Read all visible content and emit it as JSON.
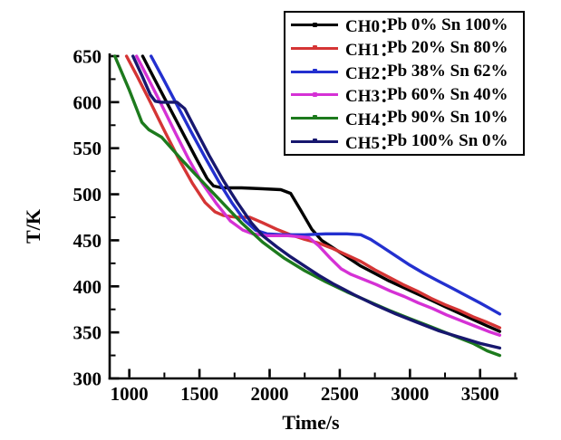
{
  "chart_data": {
    "type": "line",
    "title": "",
    "xlabel": "Time/s",
    "ylabel": "T/K",
    "xlim": [
      860,
      3760
    ],
    "ylim": [
      300,
      650
    ],
    "xticks": [
      1000,
      1500,
      2000,
      2500,
      3000,
      3500
    ],
    "xticks_minor": [
      1250,
      1750,
      2250,
      2750,
      3250,
      3750
    ],
    "yticks": [
      300,
      350,
      400,
      450,
      500,
      550,
      600,
      650
    ],
    "yticks_minor": [
      325,
      375,
      425,
      475,
      525,
      575,
      625
    ],
    "grid": false,
    "legend_position": "top-right",
    "axis_color": "#000000",
    "series": [
      {
        "name": "CH0",
        "legend_label": "CH0：",
        "composition": "Pb 0% Sn 100%",
        "color": "#000000",
        "points": [
          [
            1095,
            650
          ],
          [
            1180,
            625
          ],
          [
            1280,
            596
          ],
          [
            1380,
            567
          ],
          [
            1480,
            538
          ],
          [
            1555,
            517
          ],
          [
            1600,
            509
          ],
          [
            1660,
            507
          ],
          [
            1800,
            507
          ],
          [
            1950,
            506
          ],
          [
            2080,
            505
          ],
          [
            2150,
            501
          ],
          [
            2220,
            483
          ],
          [
            2300,
            462
          ],
          [
            2370,
            450
          ],
          [
            2450,
            442
          ],
          [
            2550,
            432
          ],
          [
            2650,
            422
          ],
          [
            2750,
            414
          ],
          [
            2850,
            406
          ],
          [
            2950,
            399
          ],
          [
            3050,
            392
          ],
          [
            3150,
            385
          ],
          [
            3250,
            378
          ],
          [
            3350,
            371
          ],
          [
            3450,
            364
          ],
          [
            3550,
            357
          ],
          [
            3640,
            351
          ]
        ]
      },
      {
        "name": "CH1",
        "legend_label": "CH1：",
        "composition": "Pb 20% Sn 80%",
        "color": "#d53535",
        "points": [
          [
            980,
            650
          ],
          [
            1060,
            627
          ],
          [
            1150,
            600
          ],
          [
            1250,
            569
          ],
          [
            1350,
            539
          ],
          [
            1450,
            512
          ],
          [
            1540,
            491
          ],
          [
            1610,
            481
          ],
          [
            1670,
            477
          ],
          [
            1760,
            475
          ],
          [
            1860,
            475
          ],
          [
            1950,
            469
          ],
          [
            2050,
            462
          ],
          [
            2150,
            456
          ],
          [
            2250,
            451
          ],
          [
            2350,
            447
          ],
          [
            2450,
            441
          ],
          [
            2550,
            434
          ],
          [
            2650,
            427
          ],
          [
            2750,
            418
          ],
          [
            2850,
            410
          ],
          [
            2950,
            402
          ],
          [
            3050,
            395
          ],
          [
            3150,
            387
          ],
          [
            3250,
            380
          ],
          [
            3350,
            374
          ],
          [
            3450,
            367
          ],
          [
            3550,
            361
          ],
          [
            3640,
            355
          ]
        ]
      },
      {
        "name": "CH2",
        "legend_label": "CH2：",
        "composition": "Pb 38% Sn 62%",
        "color": "#2330cf",
        "points": [
          [
            1155,
            650
          ],
          [
            1240,
            626
          ],
          [
            1340,
            597
          ],
          [
            1440,
            568
          ],
          [
            1540,
            540
          ],
          [
            1640,
            513
          ],
          [
            1730,
            491
          ],
          [
            1820,
            472
          ],
          [
            1900,
            461
          ],
          [
            1980,
            457
          ],
          [
            2100,
            456
          ],
          [
            2250,
            456
          ],
          [
            2400,
            457
          ],
          [
            2550,
            457
          ],
          [
            2650,
            456
          ],
          [
            2720,
            451
          ],
          [
            2800,
            443
          ],
          [
            2900,
            433
          ],
          [
            3000,
            423
          ],
          [
            3100,
            414
          ],
          [
            3200,
            406
          ],
          [
            3300,
            398
          ],
          [
            3400,
            390
          ],
          [
            3500,
            382
          ],
          [
            3570,
            376
          ],
          [
            3640,
            370
          ]
        ]
      },
      {
        "name": "CH3",
        "legend_label": "CH3：",
        "composition": "Pb 60% Sn 40%",
        "color": "#d531d5",
        "points": [
          [
            1052,
            650
          ],
          [
            1130,
            627
          ],
          [
            1230,
            597
          ],
          [
            1330,
            566
          ],
          [
            1420,
            539
          ],
          [
            1520,
            512
          ],
          [
            1620,
            490
          ],
          [
            1720,
            471
          ],
          [
            1810,
            461
          ],
          [
            1880,
            457
          ],
          [
            1980,
            455
          ],
          [
            2130,
            455
          ],
          [
            2280,
            453
          ],
          [
            2350,
            444
          ],
          [
            2430,
            431
          ],
          [
            2510,
            419
          ],
          [
            2580,
            413
          ],
          [
            2660,
            408
          ],
          [
            2760,
            402
          ],
          [
            2860,
            395
          ],
          [
            2960,
            389
          ],
          [
            3060,
            382
          ],
          [
            3160,
            376
          ],
          [
            3260,
            369
          ],
          [
            3360,
            363
          ],
          [
            3460,
            357
          ],
          [
            3560,
            351
          ],
          [
            3640,
            347
          ]
        ]
      },
      {
        "name": "CH4",
        "legend_label": "CH4：",
        "composition": "Pb 90% Sn 10%",
        "color": "#1d7a1d",
        "points": [
          [
            897,
            650
          ],
          [
            1000,
            613
          ],
          [
            1090,
            578
          ],
          [
            1140,
            570
          ],
          [
            1230,
            562
          ],
          [
            1370,
            538
          ],
          [
            1500,
            517
          ],
          [
            1650,
            493
          ],
          [
            1800,
            469
          ],
          [
            1950,
            448
          ],
          [
            2100,
            431
          ],
          [
            2250,
            417
          ],
          [
            2400,
            405
          ],
          [
            2550,
            394
          ],
          [
            2700,
            384
          ],
          [
            2850,
            374
          ],
          [
            3000,
            365
          ],
          [
            3150,
            356
          ],
          [
            3300,
            347
          ],
          [
            3450,
            338
          ],
          [
            3550,
            330
          ],
          [
            3640,
            325
          ]
        ]
      },
      {
        "name": "CH5",
        "legend_label": "CH5：",
        "composition": "Pb 100% Sn 0%",
        "color": "#17176e",
        "points": [
          [
            1026,
            650
          ],
          [
            1090,
            629
          ],
          [
            1150,
            608
          ],
          [
            1185,
            601
          ],
          [
            1225,
            600
          ],
          [
            1340,
            600
          ],
          [
            1395,
            593
          ],
          [
            1480,
            568
          ],
          [
            1570,
            542
          ],
          [
            1670,
            515
          ],
          [
            1770,
            491
          ],
          [
            1870,
            469
          ],
          [
            1950,
            455
          ],
          [
            2050,
            443
          ],
          [
            2150,
            432
          ],
          [
            2250,
            422
          ],
          [
            2350,
            412
          ],
          [
            2450,
            403
          ],
          [
            2600,
            391
          ],
          [
            2750,
            380
          ],
          [
            2900,
            370
          ],
          [
            3050,
            361
          ],
          [
            3200,
            352
          ],
          [
            3350,
            345
          ],
          [
            3500,
            338
          ],
          [
            3640,
            333
          ]
        ]
      }
    ]
  }
}
